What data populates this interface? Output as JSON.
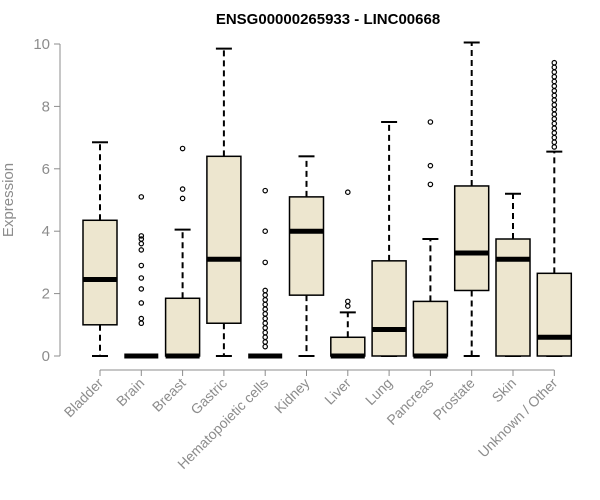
{
  "chart_data": {
    "type": "box",
    "title": "ENSG00000265933 - LINC00668",
    "ylabel": "Expression",
    "xlabel": "",
    "ylim": [
      0,
      10
    ],
    "yticks": [
      0,
      2,
      4,
      6,
      8,
      10
    ],
    "categories": [
      "Bladder",
      "Brain",
      "Breast",
      "Gastric",
      "Hematopoietic cells",
      "Kidney",
      "Liver",
      "Lung",
      "Pancreas",
      "Prostate",
      "Skin",
      "Unknown / Other"
    ],
    "boxes": [
      {
        "name": "Bladder",
        "min": 0,
        "q1": 1.0,
        "median": 2.45,
        "q3": 4.35,
        "max": 6.85,
        "outliers": []
      },
      {
        "name": "Brain",
        "min": 0,
        "q1": 0,
        "median": 0,
        "q3": 0,
        "max": 0,
        "outliers": [
          1.05,
          1.2,
          1.7,
          2.15,
          2.5,
          2.9,
          3.4,
          3.6,
          3.75,
          3.85,
          5.1
        ]
      },
      {
        "name": "Breast",
        "min": 0,
        "q1": 0,
        "median": 0,
        "q3": 1.85,
        "max": 4.05,
        "outliers": [
          5.05,
          5.35,
          6.65
        ]
      },
      {
        "name": "Gastric",
        "min": 0,
        "q1": 1.05,
        "median": 3.1,
        "q3": 6.4,
        "max": 9.85,
        "outliers": []
      },
      {
        "name": "Hematopoietic cells",
        "min": 0,
        "q1": 0,
        "median": 0,
        "q3": 0,
        "max": 0,
        "outliers": [
          0.3,
          0.45,
          0.6,
          0.75,
          0.9,
          1.05,
          1.2,
          1.35,
          1.5,
          1.65,
          1.8,
          1.95,
          2.1,
          3.0,
          4.0,
          5.3
        ]
      },
      {
        "name": "Kidney",
        "min": 0,
        "q1": 1.95,
        "median": 4.0,
        "q3": 5.1,
        "max": 6.4,
        "outliers": []
      },
      {
        "name": "Liver",
        "min": 0,
        "q1": 0,
        "median": 0,
        "q3": 0.6,
        "max": 1.4,
        "outliers": [
          1.6,
          1.75,
          5.25
        ]
      },
      {
        "name": "Lung",
        "min": 0,
        "q1": 0,
        "median": 0.85,
        "q3": 3.05,
        "max": 7.5,
        "outliers": []
      },
      {
        "name": "Pancreas",
        "min": 0,
        "q1": 0,
        "median": 0,
        "q3": 1.75,
        "max": 3.75,
        "outliers": [
          5.5,
          6.1,
          7.5
        ]
      },
      {
        "name": "Prostate",
        "min": 0,
        "q1": 2.1,
        "median": 3.3,
        "q3": 5.45,
        "max": 10.05,
        "outliers": []
      },
      {
        "name": "Skin",
        "min": 0,
        "q1": 0,
        "median": 3.1,
        "q3": 3.75,
        "max": 5.2,
        "outliers": []
      },
      {
        "name": "Unknown / Other",
        "min": 0,
        "q1": 0,
        "median": 0.6,
        "q3": 2.65,
        "max": 6.55,
        "outliers": [
          6.7,
          6.85,
          7.0,
          7.15,
          7.3,
          7.45,
          7.6,
          7.75,
          7.9,
          8.05,
          8.2,
          8.35,
          8.5,
          8.65,
          8.8,
          8.95,
          9.1,
          9.25,
          9.4
        ]
      }
    ],
    "colors": {
      "box_fill": "#ede6cf",
      "line": "#000000",
      "axis": "#8c8c8c"
    },
    "grid": false,
    "legend": "none"
  }
}
